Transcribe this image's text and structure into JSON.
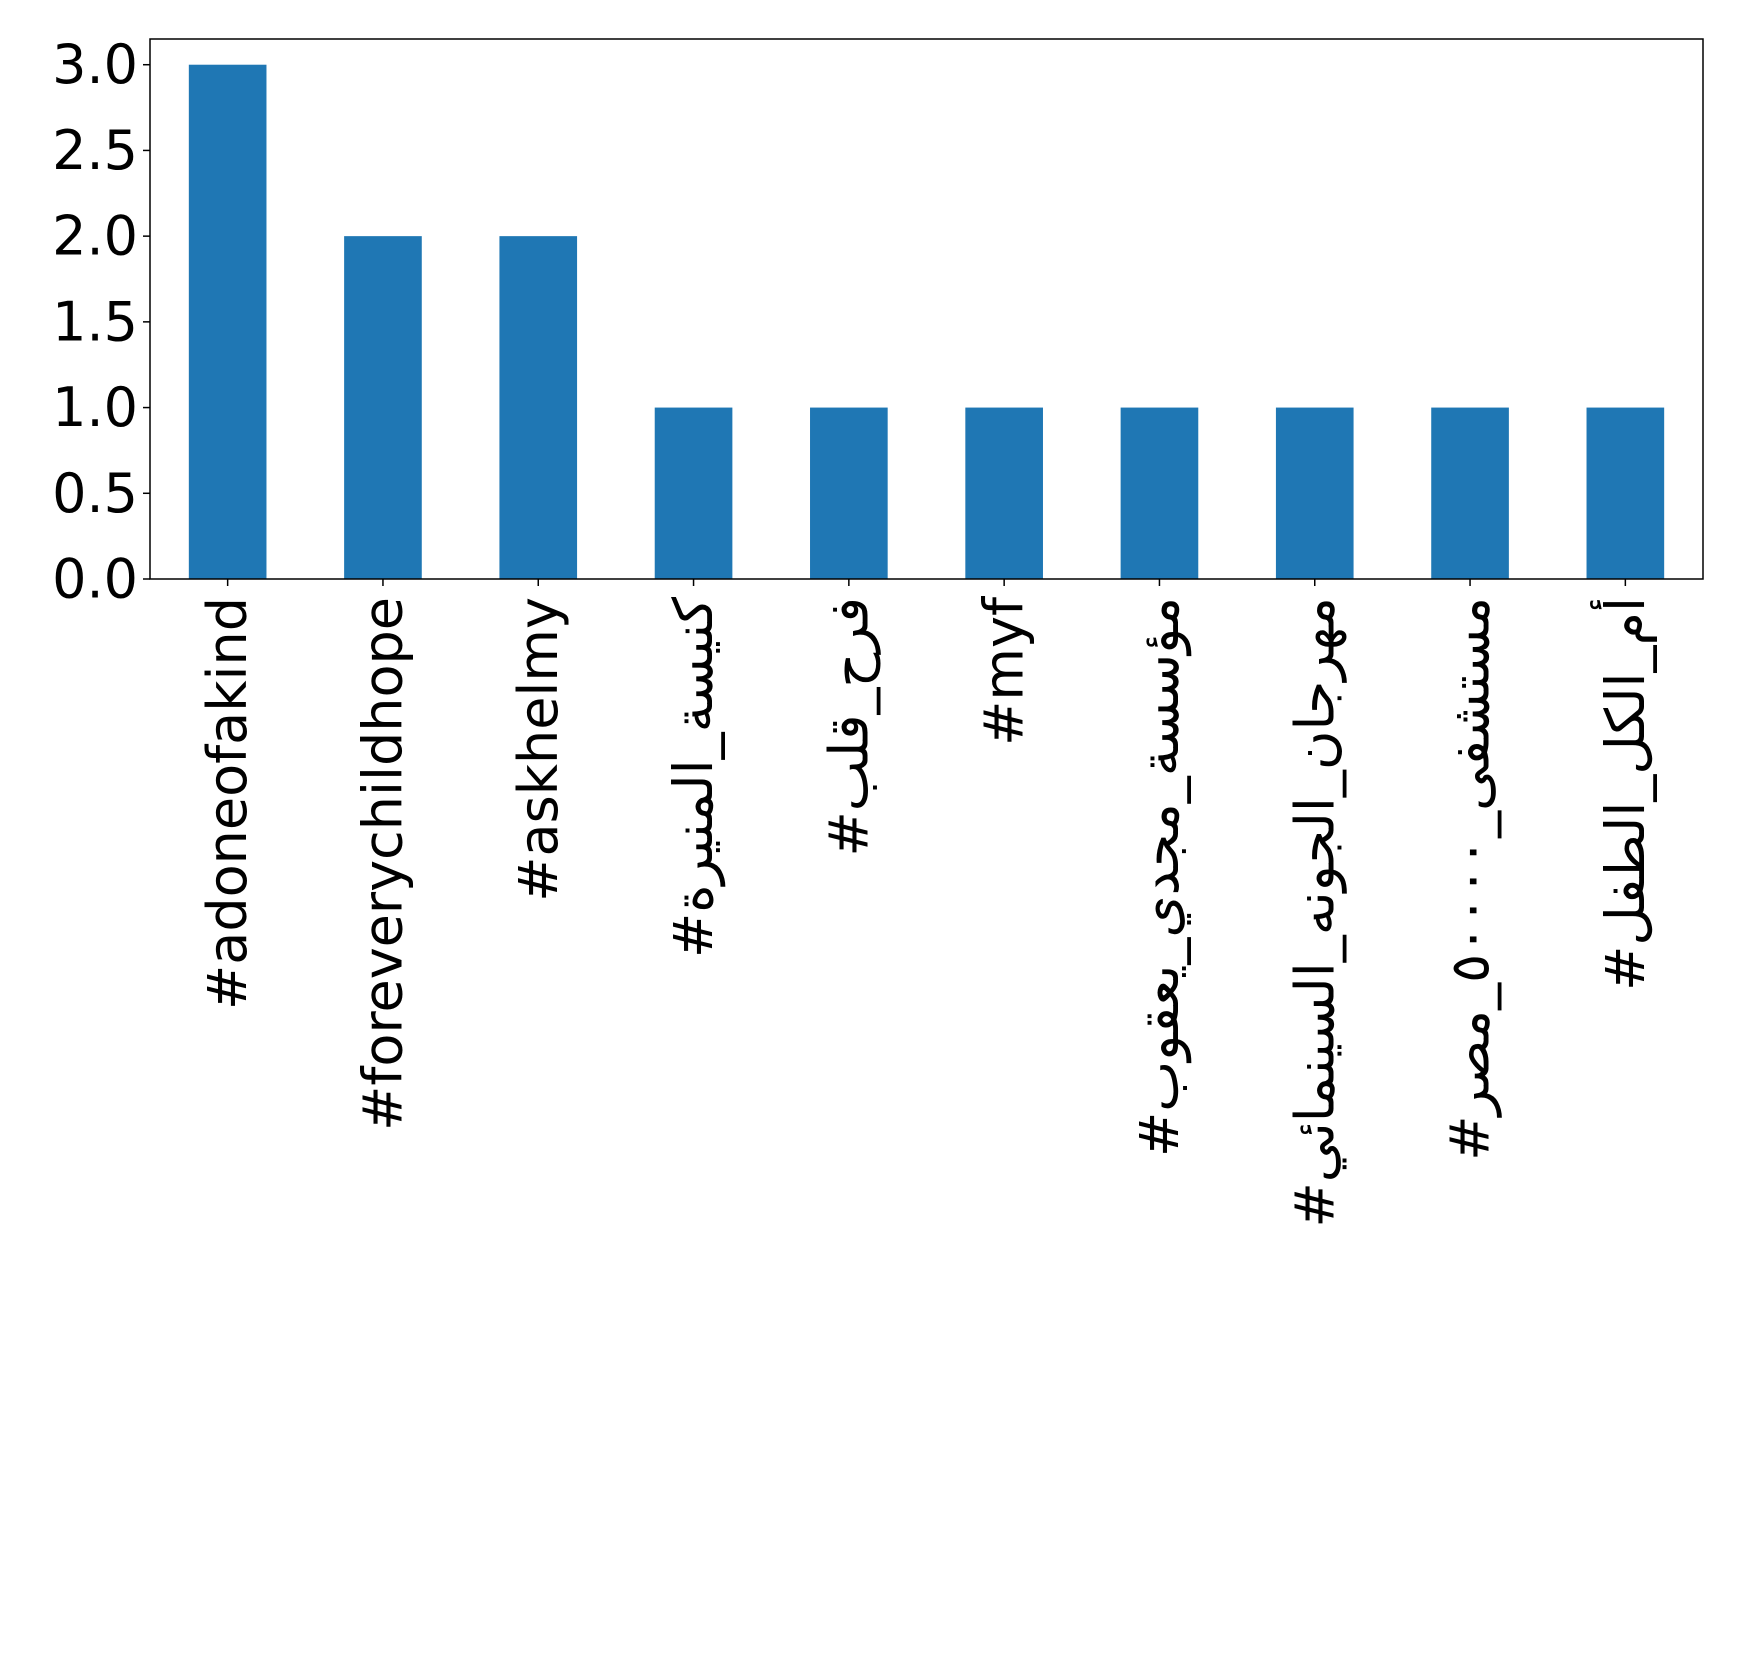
{
  "chart_data": {
    "type": "bar",
    "title": "",
    "xlabel": "",
    "ylabel": "",
    "ylim": [
      0,
      3.15
    ],
    "yticks": [
      "0.0",
      "0.5",
      "1.0",
      "1.5",
      "2.0",
      "2.5",
      "3.0"
    ],
    "grid": false,
    "legend": "none",
    "bar_color": "#1f77b4",
    "categories": [
      "#adoneofakind",
      "#foreverychildhope",
      "#askhelmy",
      "#كنيسة_المنيرة",
      "#فرح_قلب",
      "#myf",
      "#مؤسسة_مجدي_يعقوب",
      "#مهرجان_الجونه_السينمائي",
      "#مستشفى_٥٠٠٠٠_مصر",
      "#أم_الكل_الطفل"
    ],
    "values": [
      3,
      2,
      2,
      1,
      1,
      1,
      1,
      1,
      1,
      1
    ]
  }
}
